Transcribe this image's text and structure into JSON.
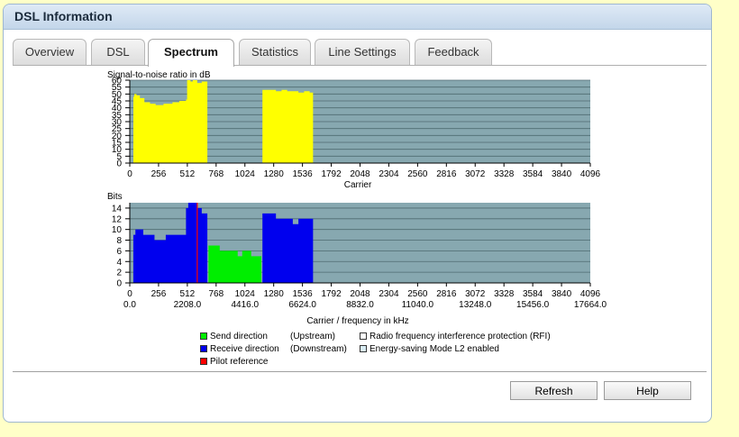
{
  "window": {
    "title": "DSL Information"
  },
  "tabs": [
    {
      "label": "Overview"
    },
    {
      "label": "DSL"
    },
    {
      "label": "Spectrum",
      "active": true
    },
    {
      "label": "Statistics"
    },
    {
      "label": "Line Settings"
    },
    {
      "label": "Feedback"
    }
  ],
  "colors": {
    "plot_bg": "#87a8b0",
    "snr": "#ffff00",
    "upstream": "#00ee00",
    "downstream": "#0000ee",
    "pilot": "#ff0000"
  },
  "chart_data": [
    {
      "type": "area",
      "ylabel": "Signal-to-noise ratio in dB",
      "xlabel": "Carrier",
      "xlim": [
        0,
        4096
      ],
      "ylim": [
        0,
        60
      ],
      "yticks": [
        0,
        5,
        10,
        15,
        20,
        25,
        30,
        35,
        40,
        45,
        50,
        55,
        60
      ],
      "xticks": [
        0,
        256,
        512,
        768,
        1024,
        1280,
        1536,
        1792,
        2048,
        2304,
        2560,
        2816,
        3072,
        3328,
        3584,
        3840,
        4096
      ],
      "grid": true,
      "series": [
        {
          "color": "snr",
          "x": [
            32,
            40,
            60,
            90,
            130,
            180,
            230,
            300,
            380,
            440,
            480,
            500,
            510,
            540,
            560,
            600,
            640,
            680,
            690
          ],
          "y": [
            48,
            50,
            49,
            47,
            44,
            43,
            42,
            43,
            44,
            45,
            45,
            46,
            60,
            59,
            60,
            58,
            59,
            59,
            0
          ]
        },
        {
          "color": "snr",
          "x": [
            1170,
            1180,
            1250,
            1300,
            1350,
            1400,
            1450,
            1500,
            1550,
            1600,
            1620,
            1630
          ],
          "y": [
            0,
            53,
            53,
            52,
            53,
            52,
            52,
            51,
            52,
            51,
            51,
            0
          ]
        }
      ]
    },
    {
      "type": "area",
      "ylabel": "Bits",
      "xlabel": "Carrier / frequency in kHz",
      "xlim": [
        0,
        4096
      ],
      "ylim": [
        0,
        15
      ],
      "yticks": [
        0,
        2,
        4,
        6,
        8,
        10,
        12,
        14
      ],
      "xticks": [
        0,
        256,
        512,
        768,
        1024,
        1280,
        1536,
        1792,
        2048,
        2304,
        2560,
        2816,
        3072,
        3328,
        3584,
        3840,
        4096
      ],
      "xticks2": [
        "0.0",
        "2208.0",
        "4416.0",
        "6624.0",
        "8832.0",
        "11040.0",
        "13248.0",
        "15456.0",
        "17664.0"
      ],
      "grid": true,
      "series": [
        {
          "name": "Receive direction",
          "color": "downstream",
          "x": [
            32,
            50,
            100,
            120,
            180,
            220,
            320,
            480,
            500,
            520,
            560,
            600,
            640,
            680,
            690
          ],
          "y": [
            9,
            10,
            10,
            9,
            9,
            8,
            9,
            9,
            14,
            15,
            15,
            14,
            13,
            13,
            0
          ]
        },
        {
          "name": "Send direction",
          "color": "upstream",
          "x": [
            690,
            700,
            760,
            800,
            850,
            900,
            960,
            1000,
            1080,
            1150,
            1170
          ],
          "y": [
            0,
            7,
            7,
            6,
            6,
            6,
            5,
            6,
            5,
            5,
            0
          ]
        },
        {
          "name": "Receive direction",
          "color": "downstream",
          "x": [
            1170,
            1180,
            1250,
            1300,
            1350,
            1400,
            1450,
            1500,
            1550,
            1600,
            1620,
            1630
          ],
          "y": [
            0,
            13,
            13,
            12,
            12,
            12,
            11,
            12,
            12,
            12,
            12,
            0
          ]
        }
      ],
      "pilot": 600
    }
  ],
  "legend": {
    "send": "Send direction",
    "send_dir": "(Upstream)",
    "receive": "Receive direction",
    "receive_dir": "(Downstream)",
    "pilot": "Pilot reference",
    "rfi": "Radio frequency interference protection (RFI)",
    "l2": "Energy-saving Mode L2 enabled"
  },
  "buttons": {
    "refresh": "Refresh",
    "help": "Help"
  }
}
